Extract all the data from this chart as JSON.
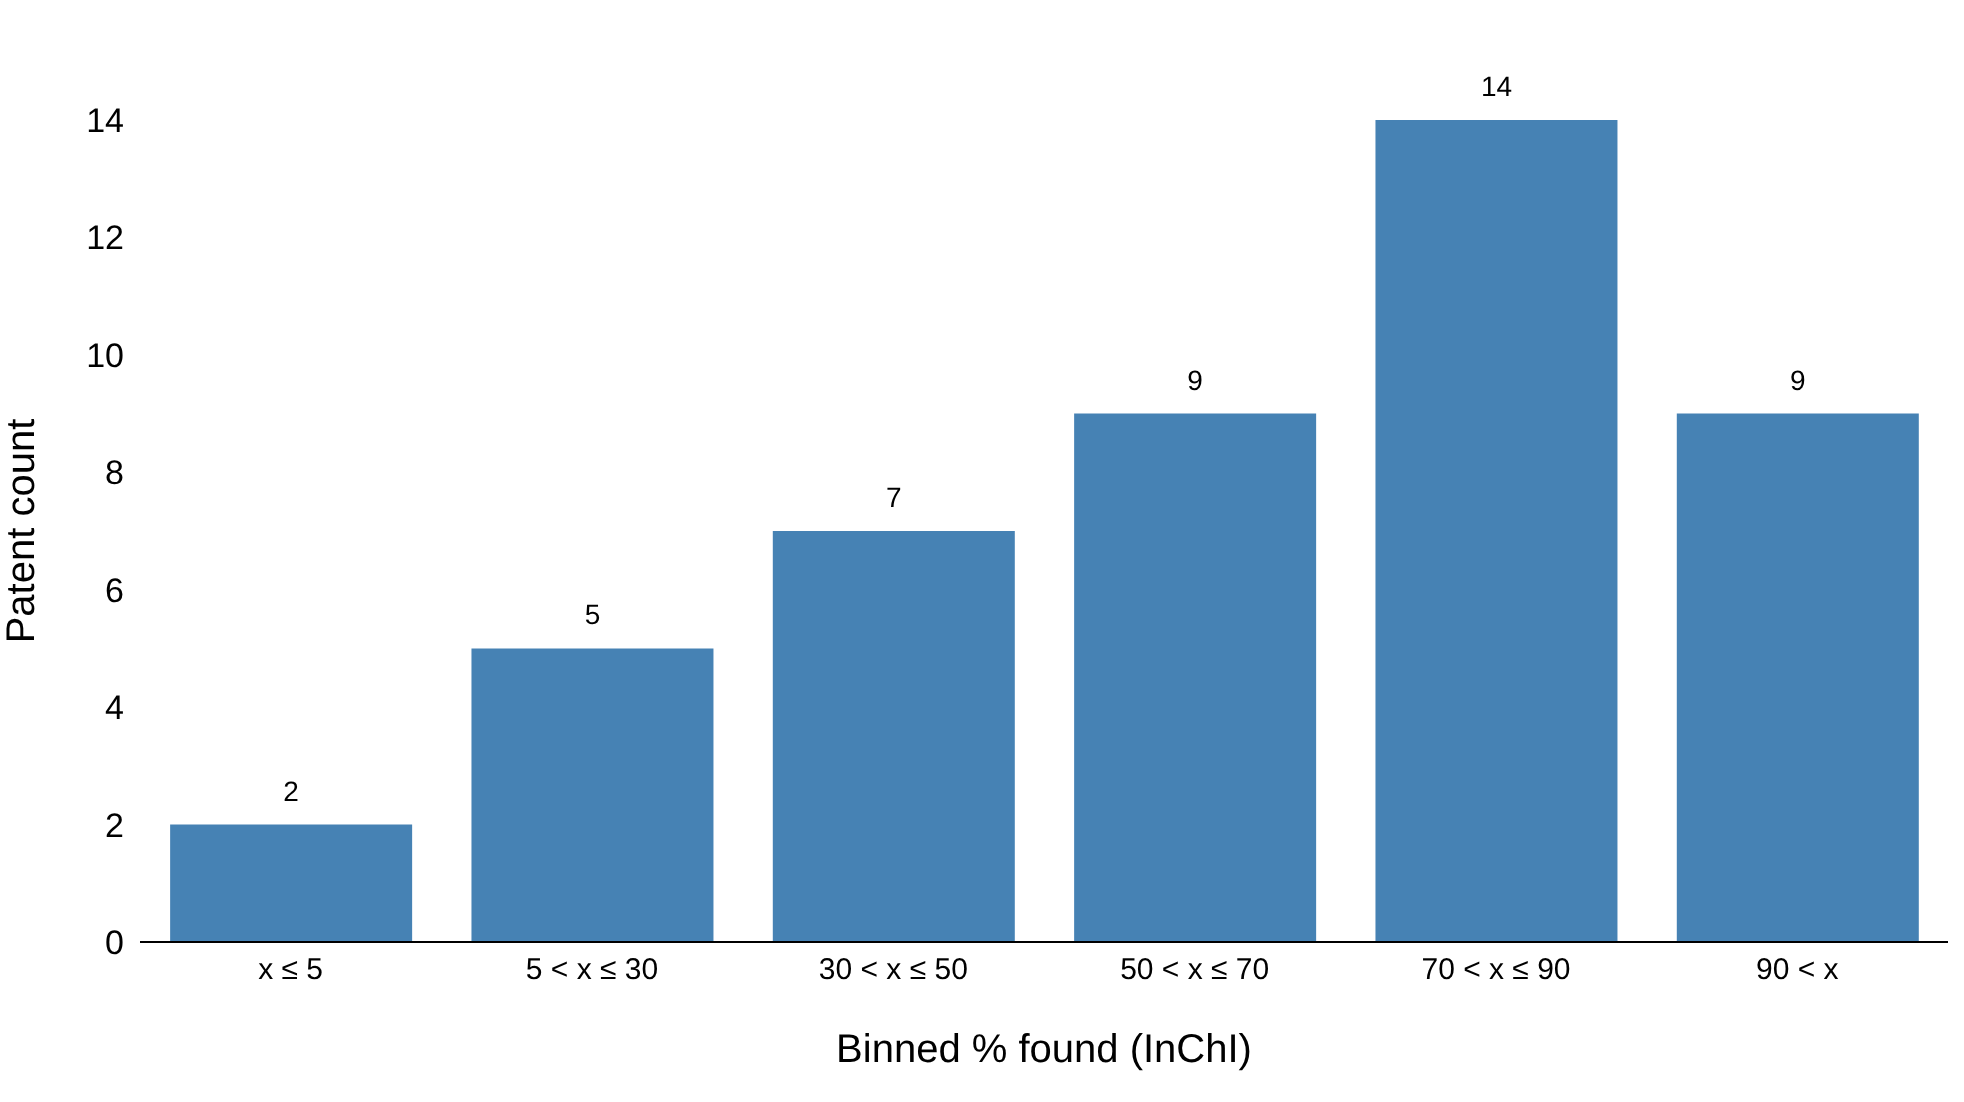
{
  "chart_data": {
    "type": "bar",
    "xlabel": "Binned % found (InChI)",
    "ylabel": "Patent count",
    "categories": [
      "x ≤ 5",
      "5 < x ≤ 30",
      "30 < x ≤ 50",
      "50 < x ≤ 70",
      "70 < x ≤ 90",
      "90 < x"
    ],
    "values": [
      2,
      5,
      7,
      9,
      14,
      9
    ],
    "color": "#4682b4",
    "data_labels": true,
    "ylim": [
      0,
      14
    ],
    "yticks": [
      0,
      2,
      4,
      6,
      8,
      10,
      12,
      14
    ],
    "grid": false,
    "legend": false
  }
}
